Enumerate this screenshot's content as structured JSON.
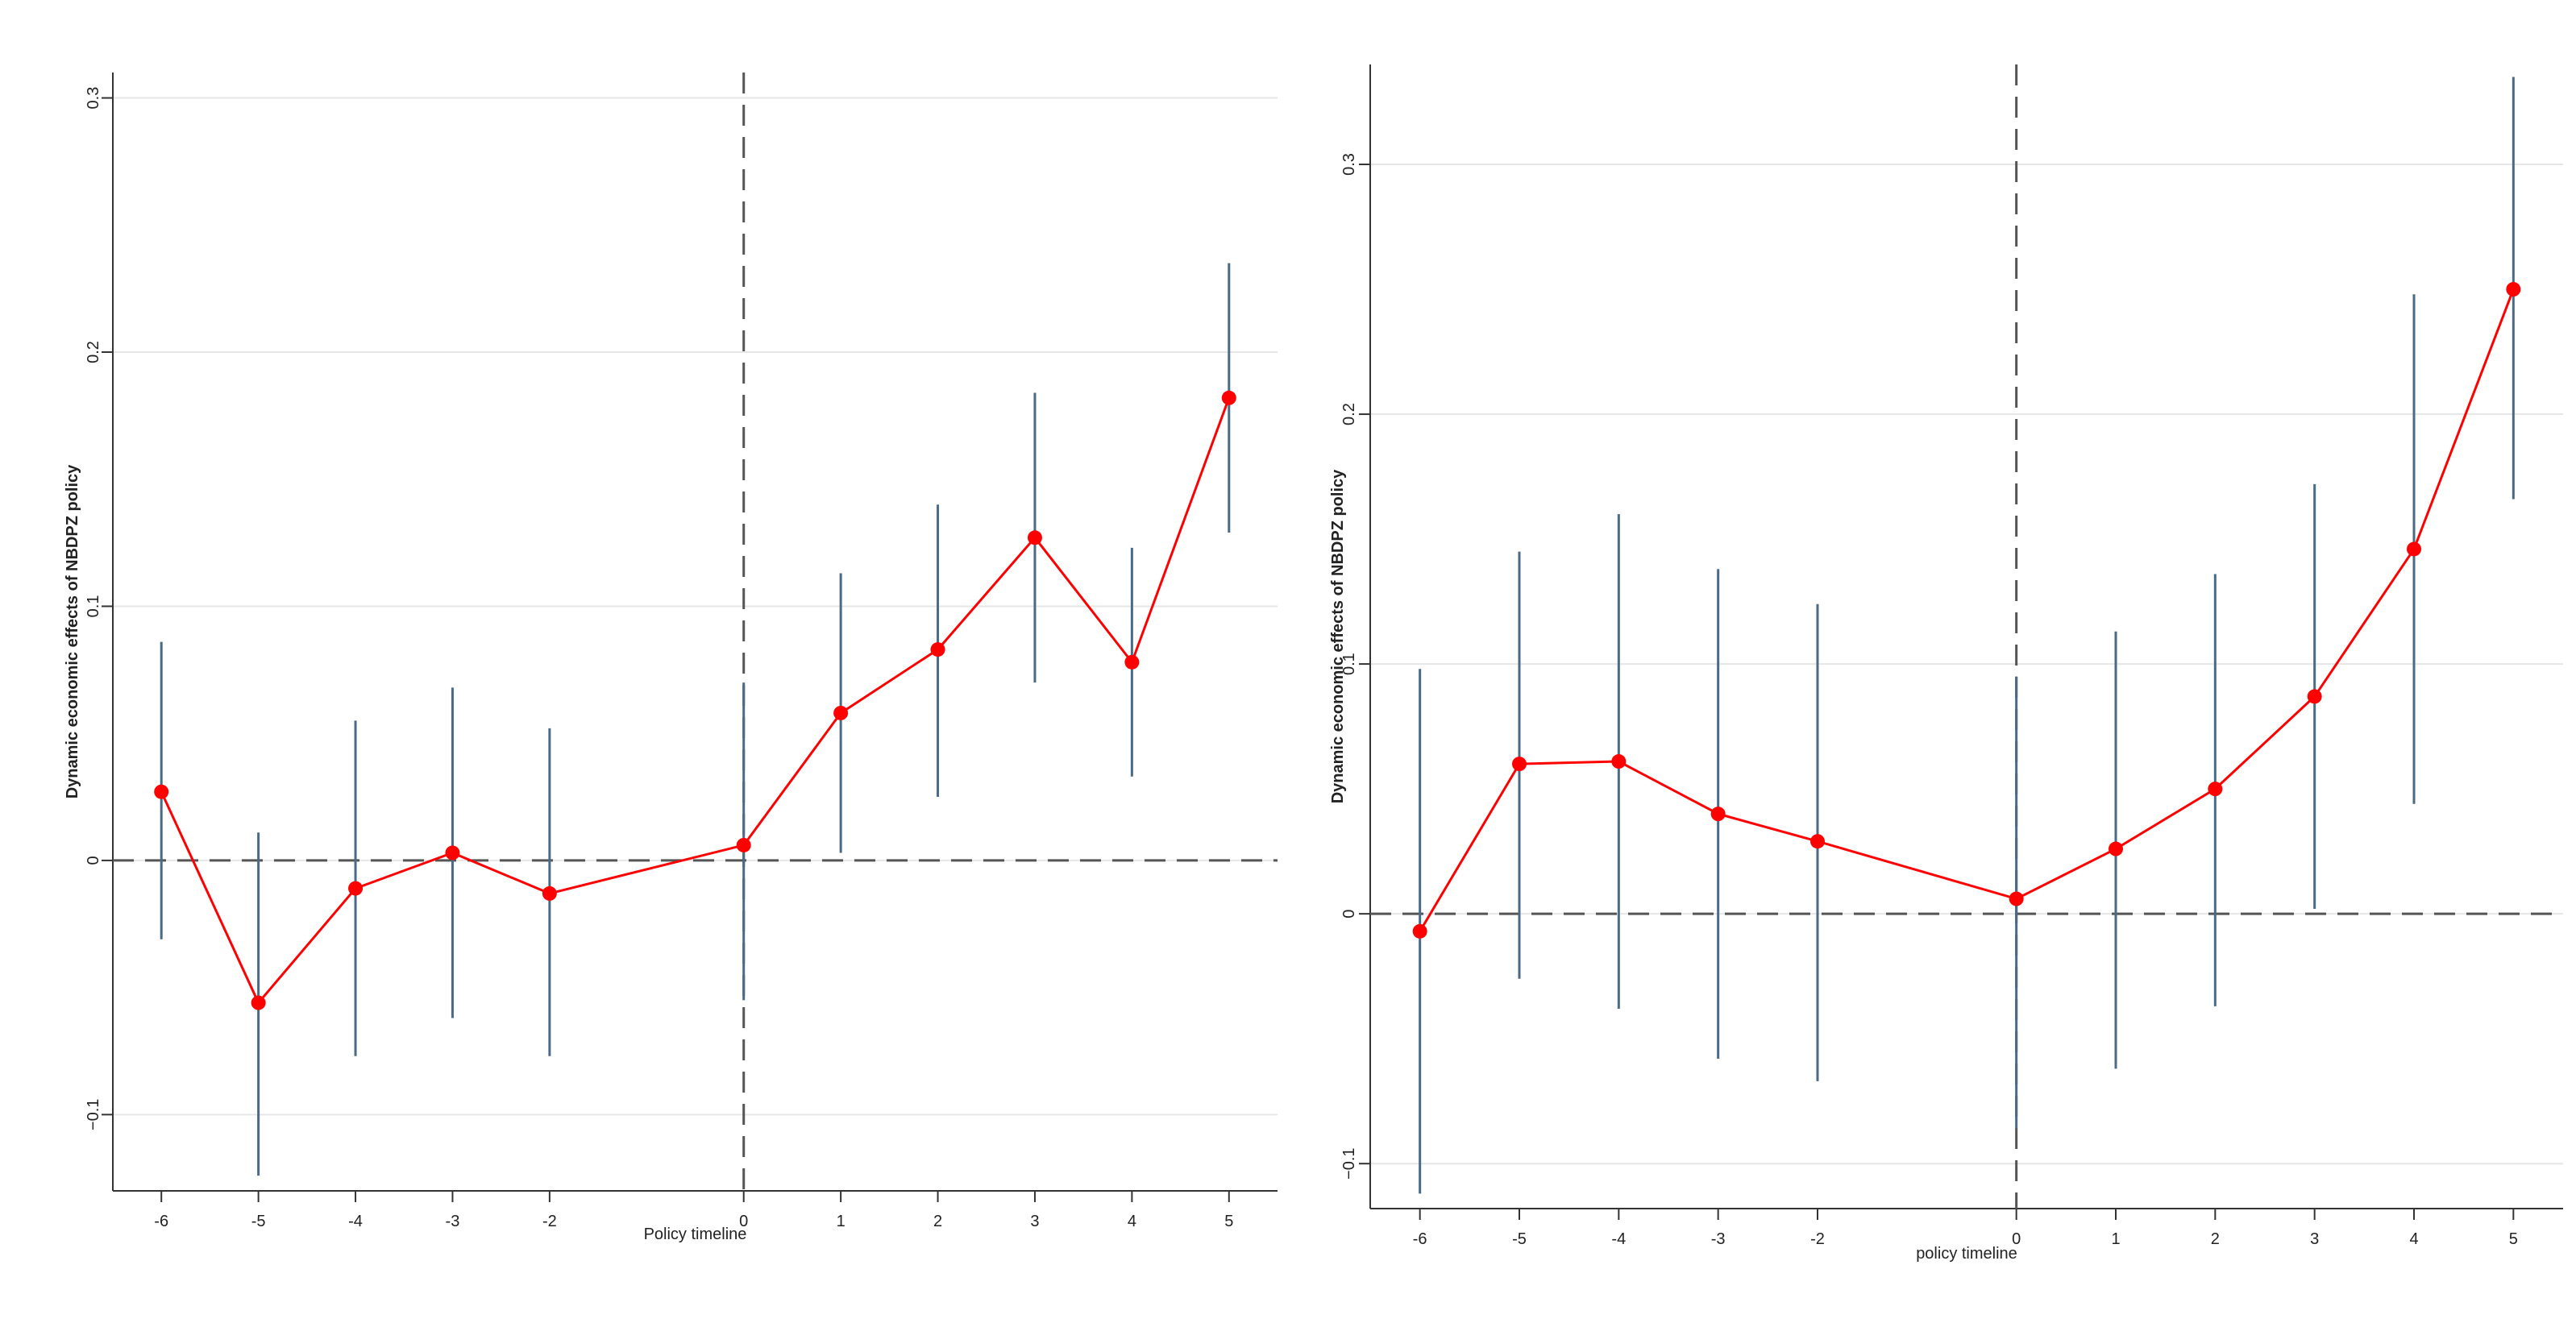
{
  "colors": {
    "ci": "#4a6a86",
    "estimate": "#ff0000",
    "grid": "#e6e6e6",
    "axis": "#333333",
    "refline": "#555555"
  },
  "chart_data": [
    {
      "type": "line",
      "title": "",
      "xlabel": "Policy timeline",
      "ylabel": "Dynamic economic effects of NBDPZ policy",
      "xlim": [
        -6.5,
        5.5
      ],
      "ylim": [
        -0.13,
        0.31
      ],
      "x_ticks": [
        -6,
        -5,
        -4,
        -3,
        -2,
        0,
        1,
        2,
        3,
        4,
        5
      ],
      "x_tick_labels": [
        "-6",
        "-5",
        "-4",
        "-3",
        "-2",
        "0",
        "1",
        "2",
        "3",
        "4",
        "5"
      ],
      "y_ticks": [
        -0.1,
        0,
        0.1,
        0.2,
        0.3
      ],
      "y_tick_labels": [
        "−0.1",
        "0",
        "0.1",
        "0.2",
        "0.3"
      ],
      "grid": true,
      "reference_lines": {
        "y": 0,
        "x": 0
      },
      "series": [
        {
          "x": [
            -6,
            -5,
            -4,
            -3,
            -2,
            0,
            1,
            2,
            3,
            4,
            5
          ],
          "values": [
            0.027,
            -0.056,
            -0.011,
            0.003,
            -0.013,
            0.006,
            0.058,
            0.083,
            0.127,
            0.078,
            0.182
          ],
          "ci_low": [
            -0.031,
            -0.124,
            -0.077,
            -0.062,
            -0.077,
            -0.055,
            0.003,
            0.025,
            0.07,
            0.033,
            0.129
          ],
          "ci_high": [
            0.086,
            0.011,
            0.055,
            0.068,
            0.052,
            0.07,
            0.113,
            0.14,
            0.184,
            0.123,
            0.235
          ]
        }
      ]
    },
    {
      "type": "line",
      "title": "",
      "xlabel": "policy timeline",
      "ylabel": "Dynamic economic effects of NBDPZ policy",
      "xlim": [
        -6.5,
        5.5
      ],
      "ylim": [
        -0.118,
        0.34
      ],
      "x_ticks": [
        -6,
        -5,
        -4,
        -3,
        -2,
        0,
        1,
        2,
        3,
        4,
        5
      ],
      "x_tick_labels": [
        "-6",
        "-5",
        "-4",
        "-3",
        "-2",
        "0",
        "1",
        "2",
        "3",
        "4",
        "5"
      ],
      "y_ticks": [
        -0.1,
        0,
        0.1,
        0.2,
        0.3
      ],
      "y_tick_labels": [
        "−0.1",
        "0",
        "0.1",
        "0.2",
        "0.3"
      ],
      "grid": true,
      "reference_lines": {
        "y": 0,
        "x": 0
      },
      "series": [
        {
          "x": [
            -6,
            -5,
            -4,
            -3,
            -2,
            0,
            1,
            2,
            3,
            4,
            5
          ],
          "values": [
            -0.007,
            0.06,
            0.061,
            0.04,
            0.029,
            0.006,
            0.026,
            0.05,
            0.087,
            0.146,
            0.25
          ],
          "ci_low": [
            -0.112,
            -0.026,
            -0.038,
            -0.058,
            -0.067,
            -0.086,
            -0.062,
            -0.037,
            0.002,
            0.044,
            0.166
          ],
          "ci_high": [
            0.098,
            0.145,
            0.16,
            0.138,
            0.124,
            0.095,
            0.113,
            0.136,
            0.172,
            0.248,
            0.335
          ]
        }
      ]
    }
  ]
}
